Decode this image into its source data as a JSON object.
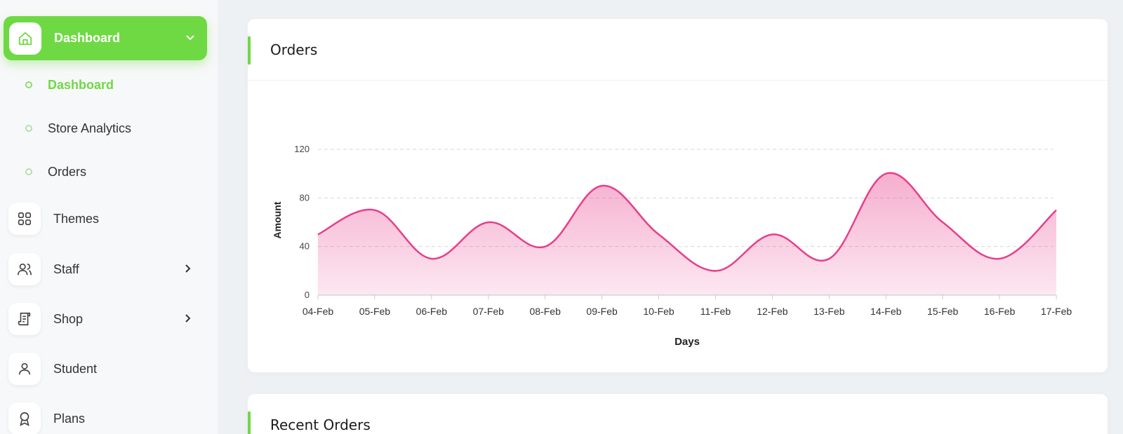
{
  "sidebar": {
    "active": {
      "label": "Dashboard",
      "icon": "home-icon"
    },
    "sub_items": [
      {
        "label": "Dashboard",
        "active": true
      },
      {
        "label": "Store Analytics",
        "active": false
      },
      {
        "label": "Orders",
        "active": false
      }
    ],
    "items": [
      {
        "label": "Themes",
        "icon": "grid-icon"
      },
      {
        "label": "Staff",
        "icon": "users-icon",
        "has_children": true
      },
      {
        "label": "Shop",
        "icon": "shop-icon",
        "has_children": true
      },
      {
        "label": "Student",
        "icon": "user-icon"
      },
      {
        "label": "Plans",
        "icon": "award-icon"
      }
    ]
  },
  "orders_card": {
    "title": "Orders"
  },
  "recent_orders_card": {
    "title": "Recent Orders"
  },
  "colors": {
    "accent": "#6fd944",
    "series": "#e83e8c"
  },
  "chart_data": {
    "type": "area",
    "x": [
      "04-Feb",
      "05-Feb",
      "06-Feb",
      "07-Feb",
      "08-Feb",
      "09-Feb",
      "10-Feb",
      "11-Feb",
      "12-Feb",
      "13-Feb",
      "14-Feb",
      "15-Feb",
      "16-Feb",
      "17-Feb"
    ],
    "series": [
      {
        "values": [
          50,
          70,
          30,
          60,
          40,
          90,
          50,
          20,
          50,
          30,
          100,
          60,
          30,
          70
        ]
      }
    ],
    "xlabel": "Days",
    "ylabel": "Amount",
    "yticks": [
      0,
      40,
      80,
      120
    ],
    "ylim": [
      0,
      120
    ],
    "grid": true
  }
}
